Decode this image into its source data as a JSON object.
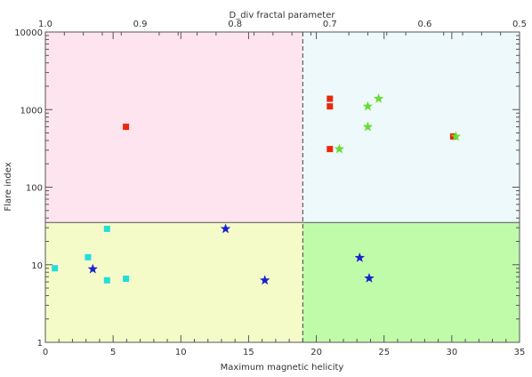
{
  "chart_data": {
    "type": "scatter",
    "title": "",
    "xlabel": "Maximum magnetic helicity",
    "ylabel": "Flare index",
    "top_xlabel": "D_div fractal parameter",
    "xlim": [
      0,
      35
    ],
    "ylim": [
      1,
      10000
    ],
    "y_scale": "log",
    "top_xlim": [
      1.0,
      0.5
    ],
    "x_ticks": [
      0,
      5,
      10,
      15,
      20,
      25,
      30,
      35
    ],
    "x_tick_labels": [
      "0",
      "5",
      "10",
      "15",
      "20",
      "25",
      "30",
      "35"
    ],
    "y_ticks": [
      1,
      10,
      100,
      1000,
      10000
    ],
    "y_tick_labels": [
      "1",
      "10",
      "100",
      "1000",
      "10000"
    ],
    "top_ticks": [
      1.0,
      0.9,
      0.8,
      0.7,
      0.6,
      0.5
    ],
    "top_tick_labels": [
      "1.0",
      "0.9",
      "0.8",
      "0.7",
      "0.6",
      "0.5"
    ],
    "grid": false,
    "threshold_x": 19,
    "threshold_y": 35,
    "quadrants": [
      {
        "x_range": [
          0,
          19
        ],
        "y_range": [
          35,
          10000
        ],
        "color": "#fde4ee"
      },
      {
        "x_range": [
          19,
          35
        ],
        "y_range": [
          35,
          10000
        ],
        "color": "#eef9fb"
      },
      {
        "x_range": [
          0,
          19
        ],
        "y_range": [
          1,
          35
        ],
        "color": "#f4fbc9"
      },
      {
        "x_range": [
          19,
          35
        ],
        "y_range": [
          1,
          35
        ],
        "color": "#c0fbaa"
      }
    ],
    "series": [
      {
        "marker": "square",
        "color": "#e8280c",
        "axis": "top",
        "points": [
          {
            "x": 0.915,
            "y": 600
          },
          {
            "x": 0.7,
            "y": 1380
          },
          {
            "x": 0.7,
            "y": 1100
          },
          {
            "x": 0.7,
            "y": 310
          },
          {
            "x": 0.57,
            "y": 450
          }
        ]
      },
      {
        "marker": "star",
        "color": "#66dd33",
        "axis": "bottom",
        "points": [
          {
            "x": 24.6,
            "y": 1380
          },
          {
            "x": 23.8,
            "y": 1100
          },
          {
            "x": 23.8,
            "y": 600
          },
          {
            "x": 21.7,
            "y": 310
          },
          {
            "x": 30.3,
            "y": 450
          }
        ]
      },
      {
        "marker": "square",
        "color": "#22dddd",
        "axis": "top",
        "points": [
          {
            "x": 0.99,
            "y": 9
          },
          {
            "x": 0.955,
            "y": 12.5
          },
          {
            "x": 0.935,
            "y": 29
          },
          {
            "x": 0.935,
            "y": 6.3
          },
          {
            "x": 0.915,
            "y": 6.6
          }
        ]
      },
      {
        "marker": "star",
        "color": "#1a22cc",
        "axis": "bottom",
        "points": [
          {
            "x": 3.5,
            "y": 8.8
          },
          {
            "x": 13.3,
            "y": 29
          },
          {
            "x": 16.2,
            "y": 6.3
          },
          {
            "x": 23.2,
            "y": 12.3
          },
          {
            "x": 23.9,
            "y": 6.7
          }
        ]
      }
    ]
  }
}
